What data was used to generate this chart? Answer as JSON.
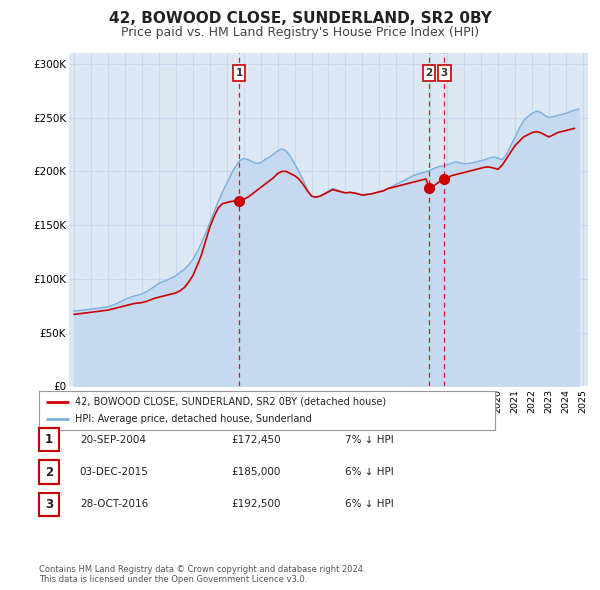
{
  "title": "42, BOWOOD CLOSE, SUNDERLAND, SR2 0BY",
  "subtitle": "Price paid vs. HM Land Registry's House Price Index (HPI)",
  "title_fontsize": 11,
  "subtitle_fontsize": 9,
  "bg_color": "#ffffff",
  "plot_bg_color": "#dde8f5",
  "grid_color": "#c8d8ec",
  "hpi_color": "#7ab0e0",
  "hpi_fill_color": "#c5d9f0",
  "price_color": "#cc0000",
  "vline_color": "#cc0000",
  "ylim": [
    0,
    310000
  ],
  "yticks": [
    0,
    50000,
    100000,
    150000,
    200000,
    250000,
    300000
  ],
  "ytick_labels": [
    "£0",
    "£50K",
    "£100K",
    "£150K",
    "£200K",
    "£250K",
    "£300K"
  ],
  "sale_dates_num": [
    2004.722,
    2015.917,
    2016.833
  ],
  "sale_prices": [
    172450,
    185000,
    192500
  ],
  "sale_labels": [
    "1",
    "2",
    "3"
  ],
  "legend_label_price": "42, BOWOOD CLOSE, SUNDERLAND, SR2 0BY (detached house)",
  "legend_label_hpi": "HPI: Average price, detached house, Sunderland",
  "table_entries": [
    {
      "num": "1",
      "date": "20-SEP-2004",
      "price": "£172,450",
      "note": "7% ↓ HPI"
    },
    {
      "num": "2",
      "date": "03-DEC-2015",
      "price": "£185,000",
      "note": "6% ↓ HPI"
    },
    {
      "num": "3",
      "date": "28-OCT-2016",
      "price": "£192,500",
      "note": "6% ↓ HPI"
    }
  ],
  "footer": "Contains HM Land Registry data © Crown copyright and database right 2024.\nThis data is licensed under the Open Government Licence v3.0.",
  "hpi_data": {
    "dates": [
      1995.0,
      1995.25,
      1995.5,
      1995.75,
      1996.0,
      1996.25,
      1996.5,
      1996.75,
      1997.0,
      1997.25,
      1997.5,
      1997.75,
      1998.0,
      1998.25,
      1998.5,
      1998.75,
      1999.0,
      1999.25,
      1999.5,
      1999.75,
      2000.0,
      2000.25,
      2000.5,
      2000.75,
      2001.0,
      2001.25,
      2001.5,
      2001.75,
      2002.0,
      2002.25,
      2002.5,
      2002.75,
      2003.0,
      2003.25,
      2003.5,
      2003.75,
      2004.0,
      2004.25,
      2004.5,
      2004.75,
      2005.0,
      2005.25,
      2005.5,
      2005.75,
      2006.0,
      2006.25,
      2006.5,
      2006.75,
      2007.0,
      2007.25,
      2007.5,
      2007.75,
      2008.0,
      2008.25,
      2008.5,
      2008.75,
      2009.0,
      2009.25,
      2009.5,
      2009.75,
      2010.0,
      2010.25,
      2010.5,
      2010.75,
      2011.0,
      2011.25,
      2011.5,
      2011.75,
      2012.0,
      2012.25,
      2012.5,
      2012.75,
      2013.0,
      2013.25,
      2013.5,
      2013.75,
      2014.0,
      2014.25,
      2014.5,
      2014.75,
      2015.0,
      2015.25,
      2015.5,
      2015.75,
      2016.0,
      2016.25,
      2016.5,
      2016.75,
      2017.0,
      2017.25,
      2017.5,
      2017.75,
      2018.0,
      2018.25,
      2018.5,
      2018.75,
      2019.0,
      2019.25,
      2019.5,
      2019.75,
      2020.0,
      2020.25,
      2020.5,
      2020.75,
      2021.0,
      2021.25,
      2021.5,
      2021.75,
      2022.0,
      2022.25,
      2022.5,
      2022.75,
      2023.0,
      2023.25,
      2023.5,
      2023.75,
      2024.0,
      2024.25,
      2024.5,
      2024.75
    ],
    "values": [
      70000,
      70500,
      71000,
      71500,
      72000,
      72500,
      73000,
      73500,
      74000,
      75500,
      77000,
      79000,
      81000,
      82500,
      84000,
      85000,
      86000,
      88000,
      90500,
      93000,
      96000,
      97500,
      99000,
      101000,
      103000,
      106000,
      109000,
      113000,
      118000,
      125000,
      133000,
      142000,
      152000,
      162000,
      172000,
      181000,
      189000,
      197000,
      204000,
      210000,
      212000,
      211000,
      209000,
      207500,
      208000,
      211000,
      213000,
      216000,
      219000,
      221000,
      219000,
      214000,
      207000,
      200000,
      192000,
      183000,
      177000,
      176000,
      177000,
      179000,
      182000,
      184000,
      183000,
      181000,
      180000,
      180500,
      180000,
      179000,
      178000,
      178500,
      179000,
      180000,
      181000,
      182000,
      184000,
      186000,
      188000,
      190000,
      192000,
      194000,
      196000,
      197500,
      198500,
      199500,
      201000,
      203000,
      204500,
      205000,
      206000,
      207500,
      209000,
      208000,
      207000,
      207500,
      208000,
      209000,
      210000,
      211000,
      212500,
      213500,
      212000,
      211000,
      216000,
      224000,
      232000,
      240000,
      247000,
      251000,
      254000,
      256000,
      255000,
      252000,
      250000,
      251000,
      252000,
      253000,
      254000,
      255500,
      257000,
      258000
    ]
  },
  "price_data": {
    "dates": [
      1995.0,
      1995.25,
      1995.5,
      1995.75,
      1996.0,
      1996.25,
      1996.5,
      1996.75,
      1997.0,
      1997.25,
      1997.5,
      1997.75,
      1998.0,
      1998.25,
      1998.5,
      1998.75,
      1999.0,
      1999.25,
      1999.5,
      1999.75,
      2000.0,
      2000.25,
      2000.5,
      2000.75,
      2001.0,
      2001.25,
      2001.5,
      2001.75,
      2002.0,
      2002.25,
      2002.5,
      2002.75,
      2003.0,
      2003.25,
      2003.5,
      2003.75,
      2004.0,
      2004.25,
      2004.5,
      2004.722,
      2005.0,
      2005.25,
      2005.5,
      2005.75,
      2006.0,
      2006.25,
      2006.5,
      2006.75,
      2007.0,
      2007.25,
      2007.5,
      2007.75,
      2008.0,
      2008.25,
      2008.5,
      2008.75,
      2009.0,
      2009.25,
      2009.5,
      2009.75,
      2010.0,
      2010.25,
      2010.5,
      2010.75,
      2011.0,
      2011.25,
      2011.5,
      2011.75,
      2012.0,
      2012.25,
      2012.5,
      2012.75,
      2013.0,
      2013.25,
      2013.5,
      2013.75,
      2014.0,
      2014.25,
      2014.5,
      2014.75,
      2015.0,
      2015.25,
      2015.5,
      2015.75,
      2015.917,
      2016.0,
      2016.25,
      2016.5,
      2016.833,
      2017.0,
      2017.25,
      2017.5,
      2017.75,
      2018.0,
      2018.25,
      2018.5,
      2018.75,
      2019.0,
      2019.25,
      2019.5,
      2019.75,
      2020.0,
      2020.25,
      2020.5,
      2020.75,
      2021.0,
      2021.25,
      2021.5,
      2021.75,
      2022.0,
      2022.25,
      2022.5,
      2022.75,
      2023.0,
      2023.25,
      2023.5,
      2023.75,
      2024.0,
      2024.25,
      2024.5
    ],
    "values": [
      67000,
      67500,
      68000,
      68500,
      69000,
      69500,
      70000,
      70500,
      71000,
      72000,
      73000,
      74000,
      75000,
      76000,
      77000,
      77500,
      78000,
      79000,
      80500,
      82000,
      83000,
      84000,
      85000,
      86000,
      87000,
      89000,
      92000,
      97000,
      103000,
      112000,
      122000,
      135000,
      148000,
      158000,
      166000,
      170000,
      171000,
      172000,
      172450,
      172450,
      174000,
      176000,
      179000,
      182000,
      185000,
      188000,
      191000,
      194000,
      198000,
      200000,
      200000,
      198000,
      196000,
      193000,
      188000,
      182000,
      177000,
      176000,
      177000,
      179000,
      181000,
      183000,
      182000,
      181000,
      180000,
      180500,
      180000,
      179000,
      178000,
      178500,
      179000,
      180000,
      181000,
      182000,
      184000,
      185000,
      186000,
      187000,
      188000,
      189000,
      190000,
      191000,
      192000,
      193000,
      185000,
      185000,
      187000,
      190000,
      192500,
      194000,
      196000,
      197000,
      198000,
      199000,
      200000,
      201000,
      202000,
      203000,
      204000,
      204000,
      203000,
      202000,
      206000,
      212000,
      218000,
      224000,
      228000,
      232000,
      234000,
      236000,
      237000,
      236000,
      234000,
      232000,
      234000,
      236000,
      237000,
      238000,
      239000,
      240000
    ]
  }
}
